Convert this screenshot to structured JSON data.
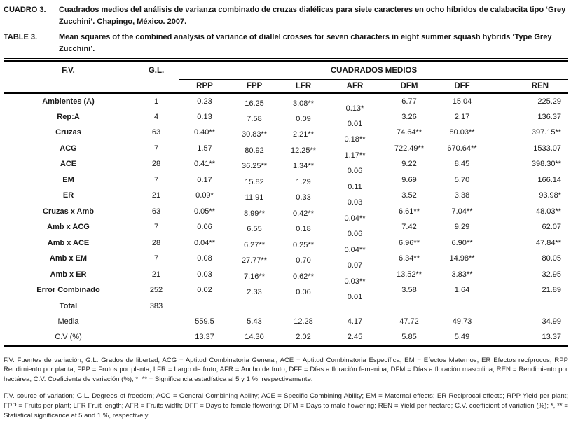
{
  "ink_color": "#1a1a1a",
  "captions": {
    "es": {
      "label": "CUADRO 3.",
      "text": "Cuadrados medios del análisis de varianza combinado de cruzas dialélicas para siete caracteres en ocho híbridos de calabacita tipo ‘Grey Zucchini’. Chapingo, México. 2007."
    },
    "en": {
      "label": "TABLE 3.",
      "text": "Mean squares of the combined analysis of variance of diallel crosses for seven characters in eight summer squash hybrids ‘Type Grey Zucchini’."
    }
  },
  "table": {
    "col_fv": "F.V.",
    "col_gl": "G.L.",
    "spanner": "CUADRADOS MEDIOS",
    "columns": [
      "RPP",
      "FPP",
      "LFR",
      "AFR",
      "DFM",
      "DFF",
      "REN"
    ],
    "rows": [
      {
        "fv": "Ambientes (A)",
        "gl": "1",
        "values": [
          "0.23",
          "16.25",
          "3.08**",
          "0.13*",
          "6.77",
          "15.04",
          "225.29"
        ]
      },
      {
        "fv": "Rep:A",
        "gl": "4",
        "values": [
          "0.13",
          "7.58",
          "0.09",
          "0.01",
          "3.26",
          "2.17",
          "136.37"
        ]
      },
      {
        "fv": "Cruzas",
        "gl": "63",
        "values": [
          "0.40**",
          "30.83**",
          "2.21**",
          "0.18**",
          "74.64**",
          "80.03**",
          "397.15**"
        ]
      },
      {
        "fv": "ACG",
        "gl": "7",
        "values": [
          "1.57",
          "80.92",
          "12.25**",
          "1.17**",
          "722.49**",
          "670.64**",
          "1533.07"
        ]
      },
      {
        "fv": "ACE",
        "gl": "28",
        "values": [
          "0.41**",
          "36.25**",
          "1.34**",
          "0.06",
          "9.22",
          "8.45",
          "398.30**"
        ]
      },
      {
        "fv": "EM",
        "gl": "7",
        "values": [
          "0.17",
          "15.82",
          "1.29",
          "0.11",
          "9.69",
          "5.70",
          "166.14"
        ]
      },
      {
        "fv": "ER",
        "gl": "21",
        "values": [
          "0.09*",
          "11.91",
          "0.33",
          "0.03",
          "3.52",
          "3.38",
          "93.98*"
        ]
      },
      {
        "fv": "Cruzas x Amb",
        "gl": "63",
        "values": [
          "0.05**",
          "8.99**",
          "0.42**",
          "0.04**",
          "6.61**",
          "7.04**",
          "48.03**"
        ]
      },
      {
        "fv": "Amb x ACG",
        "gl": "7",
        "values": [
          "0.06",
          "6.55",
          "0.18",
          "0.06",
          "7.42",
          "9.29",
          "62.07"
        ]
      },
      {
        "fv": "Amb x ACE",
        "gl": "28",
        "values": [
          "0.04**",
          "6.27**",
          "0.25**",
          "0.04**",
          "6.96**",
          "6.90**",
          "47.84**"
        ]
      },
      {
        "fv": "Amb x EM",
        "gl": "7",
        "values": [
          "0.08",
          "27.77**",
          "0.70",
          "0.07",
          "6.34**",
          "14.98**",
          "80.05"
        ]
      },
      {
        "fv": "Amb x ER",
        "gl": "21",
        "values": [
          "0.03",
          "7.16**",
          "0.62**",
          "0.03**",
          "13.52**",
          "3.83**",
          "32.95"
        ]
      },
      {
        "fv": "Error Combinado",
        "gl": "252",
        "values": [
          "0.02",
          "2.33",
          "0.06",
          "0.01",
          "3.58",
          "1.64",
          "21.89"
        ]
      },
      {
        "fv": "Total",
        "gl": "383",
        "values": [
          "",
          "",
          "",
          "",
          "",
          "",
          ""
        ]
      },
      {
        "fv": "Media",
        "gl": "",
        "values": [
          "559.5",
          "5.43",
          "12.28",
          "4.17",
          "47.72",
          "49.73",
          "34.99"
        ]
      },
      {
        "fv": "C.V (%)",
        "gl": "",
        "values": [
          "13.37",
          "14.30",
          "2.02",
          "2.45",
          "5.85",
          "5.49",
          "13.37"
        ]
      }
    ]
  },
  "footnotes": {
    "es": "F.V. Fuentes de variación; G.L. Grados de libertad; ACG = Aptitud Combinatoria General; ACE = Aptitud Combinatoria Específica; EM = Efectos Maternos; ER Efectos recíprocos; RPP Rendimiento por planta; FPP = Frutos por planta; LFR = Largo de fruto; AFR = Ancho de fruto; DFF = Días a floración femenina; DFM = Días a floración masculina; REN = Rendimiento por hectárea; C.V. Coeficiente de variación (%); *, ** = Significancia estadística al 5 y 1 %, respectivamente.",
    "en": "F.V. source of variation; G.L. Degrees of freedom; ACG = General Combining Ability; ACE = Specific Combining Ability; EM = Maternal effects; ER Reciprocal effects; RPP Yield per plant; FPP = Fruits per plant; LFR Fruit length; AFR = Fruits width; DFF = Days to female flowering; DFM = Days to male flowering; REN = Yield per hectare; C.V. coefficient of variation (%);  *, ** = Statistical significance at 5 and 1 %, respectively."
  }
}
